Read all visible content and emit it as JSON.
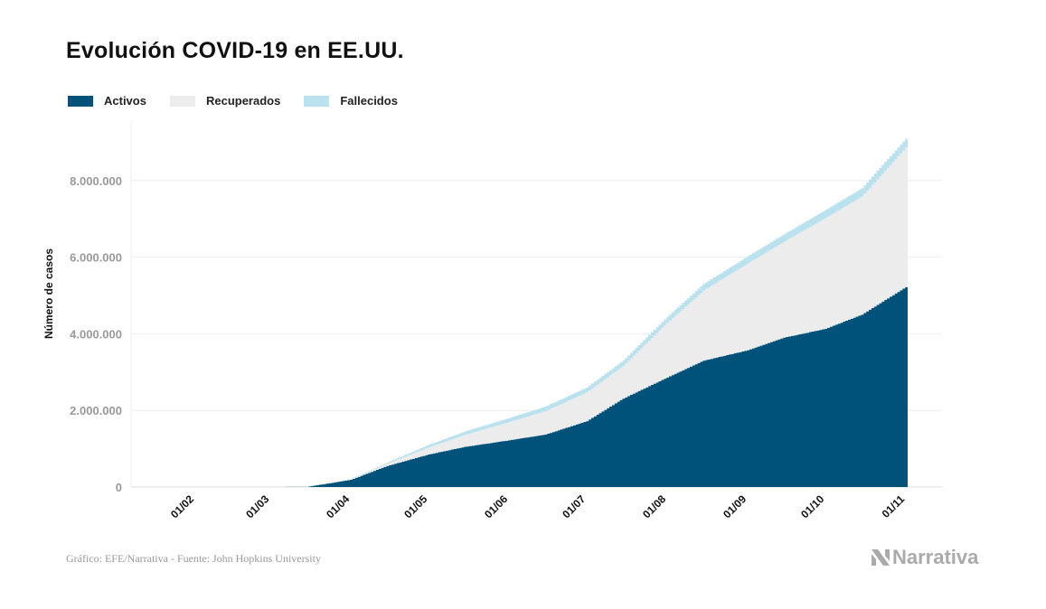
{
  "title": "Evolución COVID-19 en EE.UU.",
  "footer": "Gráfico: EFE/Narrativa - Fuente: John Hopkins University",
  "logo_text": "Narrativa",
  "chart_data": {
    "type": "area",
    "stacked": true,
    "title": "Evolución COVID-19 en EE.UU.",
    "ylabel": "Número de casos",
    "xlabel": "",
    "ylim": [
      0,
      9500000
    ],
    "yticks": [
      0,
      2000000,
      4000000,
      6000000,
      8000000
    ],
    "ytick_labels": [
      "0",
      "2.000.000",
      "4.000.000",
      "6.000.000",
      "8.000.000"
    ],
    "xticks": [
      "2020-02-01",
      "2020-03-01",
      "2020-04-01",
      "2020-05-01",
      "2020-06-01",
      "2020-07-01",
      "2020-08-01",
      "2020-09-01",
      "2020-10-01",
      "2020-11-01"
    ],
    "xtick_labels": [
      "01/02",
      "01/03",
      "01/04",
      "01/05",
      "01/06",
      "01/07",
      "01/08",
      "01/09",
      "01/10",
      "01/11"
    ],
    "grid": true,
    "legend": "top-left",
    "x": [
      "2020-01-22",
      "2020-03-01",
      "2020-03-15",
      "2020-04-01",
      "2020-04-15",
      "2020-05-01",
      "2020-05-15",
      "2020-06-01",
      "2020-06-15",
      "2020-07-01",
      "2020-07-15",
      "2020-08-01",
      "2020-08-15",
      "2020-09-01",
      "2020-09-15",
      "2020-10-01",
      "2020-10-15",
      "2020-11-01"
    ],
    "series": [
      {
        "name": "Activos",
        "color": "#00527a",
        "values": [
          0,
          60,
          3000,
          190000,
          550000,
          850000,
          1050000,
          1220000,
          1370000,
          1720000,
          2310000,
          2860000,
          3300000,
          3570000,
          3900000,
          4130000,
          4500000,
          5220000
        ]
      },
      {
        "name": "Recuperados",
        "color": "#ececec",
        "values": [
          0,
          10,
          0,
          15000,
          60000,
          185000,
          312000,
          475000,
          613000,
          752000,
          852000,
          1425000,
          1830000,
          2265000,
          2503000,
          2892000,
          3082000,
          3639000
        ]
      },
      {
        "name": "Fallecidos",
        "color": "#b9e1ee",
        "values": [
          0,
          0,
          60,
          5000,
          30000,
          65000,
          88000,
          105000,
          117000,
          128000,
          138000,
          155000,
          170000,
          185000,
          197000,
          208000,
          218000,
          231000
        ]
      }
    ]
  }
}
